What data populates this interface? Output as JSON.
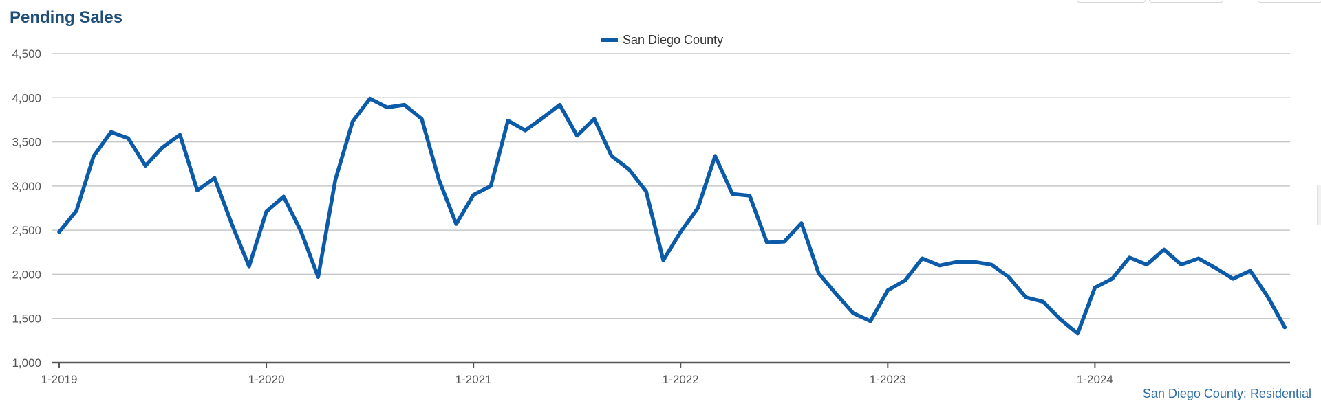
{
  "chart_data": {
    "type": "line",
    "title": "Pending Sales",
    "legend": {
      "position": "top-center",
      "entries": [
        "San Diego County"
      ]
    },
    "xlabel": "",
    "ylabel": "",
    "ylim": [
      1000,
      4500
    ],
    "yticks": [
      "1,000",
      "1,500",
      "2,000",
      "2,500",
      "3,000",
      "3,500",
      "4,000",
      "4,500"
    ],
    "ytick_values": [
      1000,
      1500,
      2000,
      2500,
      3000,
      3500,
      4000,
      4500
    ],
    "xticks": [
      "1-2019",
      "1-2020",
      "1-2021",
      "1-2022",
      "1-2023",
      "1-2024"
    ],
    "xtick_months": [
      "2019-01",
      "2020-01",
      "2021-01",
      "2022-01",
      "2023-01",
      "2024-01"
    ],
    "x_range": [
      "2019-01",
      "2024-12"
    ],
    "grid": true,
    "colors": {
      "series": "#0b5ba8",
      "grid": "#c8c8c8",
      "axis": "#555555",
      "title": "#1f4e79",
      "source": "#2e6da4"
    },
    "source_note": "San Diego County: Residential",
    "series": [
      {
        "name": "San Diego County",
        "x": [
          "2019-01",
          "2019-02",
          "2019-03",
          "2019-04",
          "2019-05",
          "2019-06",
          "2019-07",
          "2019-08",
          "2019-09",
          "2019-10",
          "2019-11",
          "2019-12",
          "2020-01",
          "2020-02",
          "2020-03",
          "2020-04",
          "2020-05",
          "2020-06",
          "2020-07",
          "2020-08",
          "2020-09",
          "2020-10",
          "2020-11",
          "2020-12",
          "2021-01",
          "2021-02",
          "2021-03",
          "2021-04",
          "2021-05",
          "2021-06",
          "2021-07",
          "2021-08",
          "2021-09",
          "2021-10",
          "2021-11",
          "2021-12",
          "2022-01",
          "2022-02",
          "2022-03",
          "2022-04",
          "2022-05",
          "2022-06",
          "2022-07",
          "2022-08",
          "2022-09",
          "2022-10",
          "2022-11",
          "2022-12",
          "2023-01",
          "2023-02",
          "2023-03",
          "2023-04",
          "2023-05",
          "2023-06",
          "2023-07",
          "2023-08",
          "2023-09",
          "2023-10",
          "2023-11",
          "2023-12",
          "2024-01",
          "2024-02",
          "2024-03",
          "2024-04",
          "2024-05",
          "2024-06",
          "2024-07",
          "2024-08",
          "2024-09",
          "2024-10",
          "2024-11",
          "2024-12"
        ],
        "values": [
          2480,
          2720,
          3340,
          3610,
          3540,
          3230,
          3440,
          3580,
          2950,
          3090,
          2570,
          2090,
          2710,
          2880,
          2490,
          1970,
          3070,
          3730,
          3990,
          3890,
          3920,
          3760,
          3070,
          2570,
          2900,
          3000,
          3740,
          3630,
          3770,
          3920,
          3570,
          3760,
          3340,
          3190,
          2940,
          2160,
          2480,
          2750,
          3340,
          2910,
          2890,
          2360,
          2370,
          2580,
          2010,
          1780,
          1560,
          1470,
          1820,
          1930,
          2180,
          2100,
          2140,
          2140,
          2110,
          1970,
          1740,
          1690,
          1490,
          1330,
          1850,
          1950,
          2190,
          2110,
          2280,
          2110,
          2180,
          2070,
          1950,
          2040,
          1750,
          1400
        ]
      }
    ]
  }
}
